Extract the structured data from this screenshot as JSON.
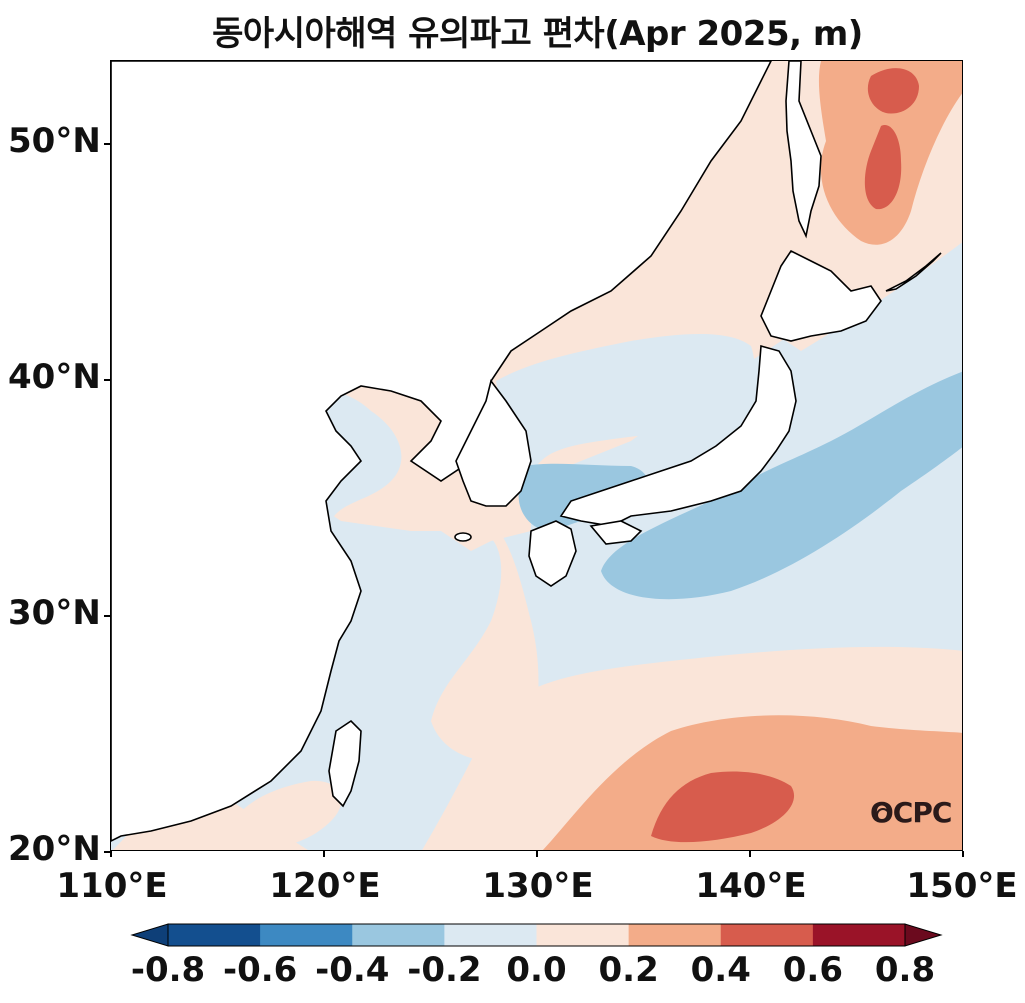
{
  "title": "동아시아해역 유의파고 편차(Apr 2025, m)",
  "watermark": "OCPC",
  "lat_labels": [
    "50°N",
    "40°N",
    "30°N",
    "20°N"
  ],
  "lon_labels": [
    "110°E",
    "120°E",
    "130°E",
    "140°E",
    "150°E"
  ],
  "colorbar": {
    "labels": [
      "-0.8",
      "-0.6",
      "-0.4",
      "-0.2",
      "0.0",
      "0.2",
      "0.4",
      "0.6",
      "0.8"
    ],
    "colors": [
      "#0e3f78",
      "#134f8f",
      "#3d89c2",
      "#9ac7e0",
      "#dce9f2",
      "#fae5d9",
      "#f3ac89",
      "#d75c4d",
      "#9a1328",
      "#6b0a1e"
    ]
  },
  "chart_data": {
    "type": "heatmap",
    "title": "동아시아해역 유의파고 편차(Apr 2025, m)",
    "xlabel": "",
    "ylabel": "",
    "xlim": [
      110,
      150
    ],
    "ylim": [
      20,
      53.5
    ],
    "x_ticks": [
      "110°E",
      "120°E",
      "130°E",
      "140°E",
      "150°E"
    ],
    "y_ticks": [
      "20°N",
      "30°N",
      "40°N",
      "50°N"
    ],
    "levels": [
      -0.8,
      -0.6,
      -0.4,
      -0.2,
      0.0,
      0.2,
      0.4,
      0.6,
      0.8
    ],
    "variable": "significant wave height anomaly (m)"
  }
}
